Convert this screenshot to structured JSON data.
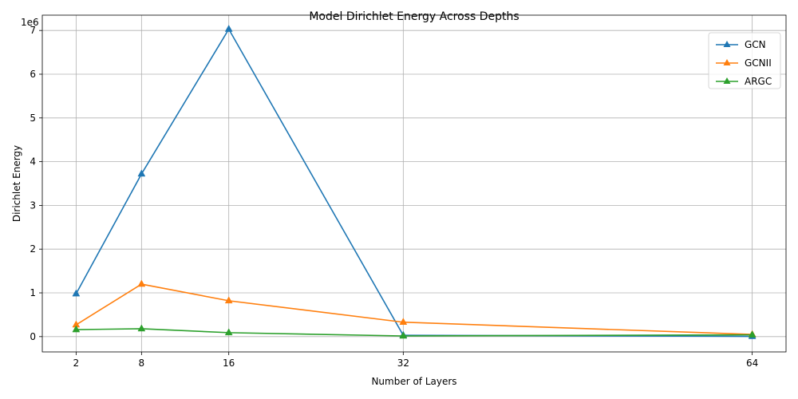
{
  "chart_data": {
    "type": "line",
    "title": "Model Dirichlet Energy Across Depths",
    "xlabel": "Number of Layers",
    "ylabel": "Dirichlet Energy",
    "y_offset_label": "1e6",
    "y_scale_factor": 1000000,
    "x": [
      2,
      8,
      16,
      32,
      64
    ],
    "x_ticks": [
      2,
      8,
      16,
      32,
      64
    ],
    "y_ticks": [
      0,
      1,
      2,
      3,
      4,
      5,
      6,
      7
    ],
    "xlim": [
      -1.1,
      67.1
    ],
    "ylim": [
      -350000,
      7350000
    ],
    "grid": true,
    "legend_position": "top-right",
    "marker": "triangle-up",
    "series": [
      {
        "name": "GCN",
        "color": "#1f77b4",
        "values": [
          980000,
          3720000,
          7030000,
          30000,
          5000
        ]
      },
      {
        "name": "GCNII",
        "color": "#ff7f0e",
        "values": [
          270000,
          1200000,
          820000,
          330000,
          50000
        ]
      },
      {
        "name": "ARGC",
        "color": "#2ca02c",
        "values": [
          160000,
          180000,
          90000,
          15000,
          40000
        ]
      }
    ]
  }
}
